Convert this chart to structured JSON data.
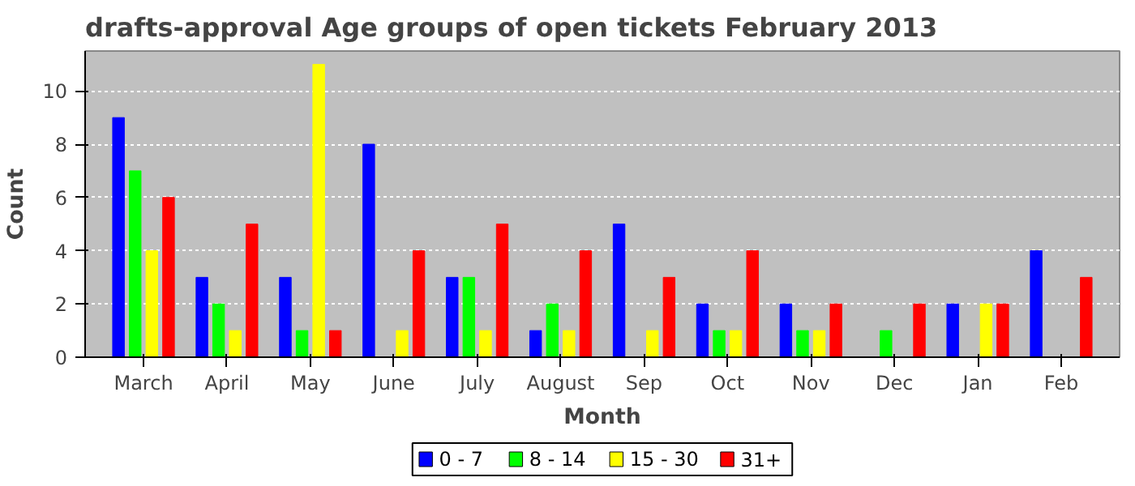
{
  "chart_data": {
    "type": "bar",
    "title": "drafts-approval Age groups of open tickets February 2013",
    "xlabel": "Month",
    "ylabel": "Count",
    "categories": [
      "March",
      "April",
      "May",
      "June",
      "July",
      "August",
      "Sep",
      "Oct",
      "Nov",
      "Dec",
      "Jan",
      "Feb"
    ],
    "series": [
      {
        "name": "0 - 7",
        "color": "#0000ff",
        "values": [
          9,
          3,
          3,
          8,
          3,
          1,
          5,
          2,
          2,
          0,
          2,
          4
        ]
      },
      {
        "name": "8 - 14",
        "color": "#00ff00",
        "values": [
          7,
          2,
          1,
          0,
          3,
          2,
          0,
          1,
          1,
          1,
          0,
          0
        ]
      },
      {
        "name": "15 - 30",
        "color": "#ffff00",
        "values": [
          4,
          1,
          11,
          1,
          1,
          1,
          1,
          1,
          1,
          0,
          2,
          0
        ]
      },
      {
        "name": "31+",
        "color": "#ff0000",
        "values": [
          6,
          5,
          1,
          4,
          5,
          4,
          3,
          4,
          2,
          2,
          2,
          3
        ]
      }
    ],
    "ylim": [
      0,
      11.5
    ],
    "yticks": [
      0,
      2,
      4,
      6,
      8,
      10
    ],
    "grid": "y",
    "legend": "bottom"
  }
}
